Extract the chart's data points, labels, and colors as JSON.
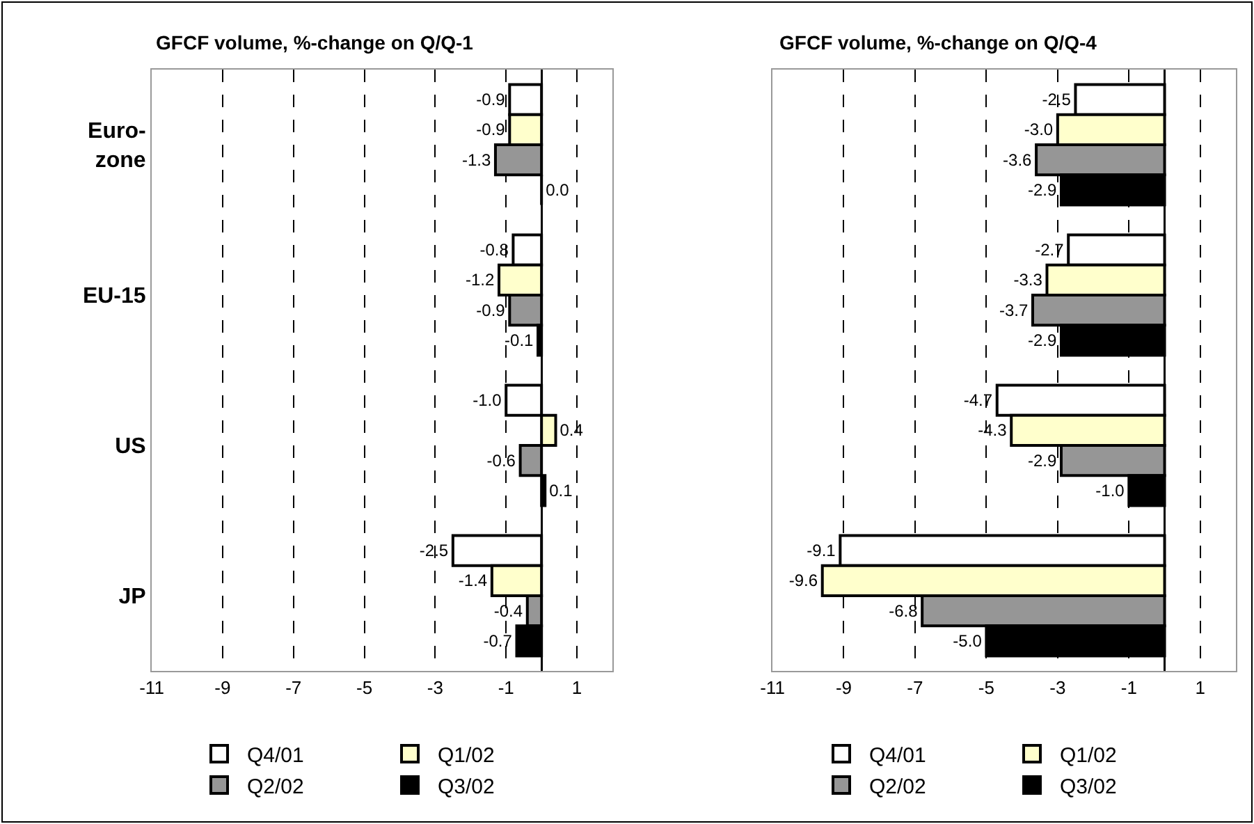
{
  "chart_data": [
    {
      "type": "bar",
      "orientation": "horizontal",
      "title": "GFCF volume, %-change on Q/Q-1",
      "categories": [
        "Euro-\nzone",
        "EU-15",
        "US",
        "JP"
      ],
      "xlim": [
        -11,
        2
      ],
      "xticks": [
        -11,
        -9,
        -7,
        -5,
        -3,
        -1,
        1
      ],
      "grid": "x",
      "legend": "bottom",
      "series": [
        {
          "name": "Q4/01",
          "color": "#ffffff",
          "values": [
            -0.9,
            -0.8,
            -1.0,
            -2.5
          ],
          "value_labels": [
            "-0.9",
            "-0.8",
            "-1.0",
            "-2.5"
          ]
        },
        {
          "name": "Q1/02",
          "color": "#ffffcc",
          "values": [
            -0.9,
            -1.2,
            0.4,
            -1.4
          ],
          "value_labels": [
            "-0.9",
            "-1.2",
            "0.4",
            "-1.4"
          ]
        },
        {
          "name": "Q2/02",
          "color": "#969696",
          "values": [
            -1.3,
            -0.9,
            -0.6,
            -0.4
          ],
          "value_labels": [
            "-1.3",
            "-0.9",
            "-0.6",
            "-0.4"
          ]
        },
        {
          "name": "Q3/02",
          "color": "#000000",
          "values": [
            0.0,
            -0.1,
            0.1,
            -0.7
          ],
          "value_labels": [
            "0.0",
            "-0.1",
            "0.1",
            "-0.7"
          ]
        }
      ]
    },
    {
      "type": "bar",
      "orientation": "horizontal",
      "title": "GFCF volume, %-change on Q/Q-4",
      "categories": [
        null,
        null,
        null,
        null
      ],
      "tick_labels": "x",
      "xlim": [
        -11,
        2
      ],
      "xticks": [
        -11,
        -9,
        -7,
        -5,
        -3,
        -1,
        1
      ],
      "grid": "x",
      "legend": "bottom",
      "series": [
        {
          "name": "Q4/01",
          "color": "#ffffff",
          "values": [
            -2.5,
            -2.7,
            -4.7,
            -9.1
          ],
          "value_labels": [
            "-2.5",
            "-2.7",
            "-4.7",
            "-9.1"
          ]
        },
        {
          "name": "Q1/02",
          "color": "#ffffcc",
          "values": [
            -3.0,
            -3.3,
            -4.3,
            -9.6
          ],
          "value_labels": [
            "-3.0",
            "-3.3",
            "-4.3",
            "-9.6"
          ]
        },
        {
          "name": "Q2/02",
          "color": "#969696",
          "values": [
            -3.6,
            -3.7,
            -2.9,
            -6.8
          ],
          "value_labels": [
            "-3.6",
            "-3.7",
            "-2.9",
            "-6.8"
          ]
        },
        {
          "name": "Q3/02",
          "color": "#000000",
          "values": [
            -2.9,
            -2.9,
            -1.0,
            -5.0
          ],
          "value_labels": [
            "-2.9",
            "-2.9",
            "-1.0",
            "-5.0"
          ]
        }
      ]
    }
  ]
}
